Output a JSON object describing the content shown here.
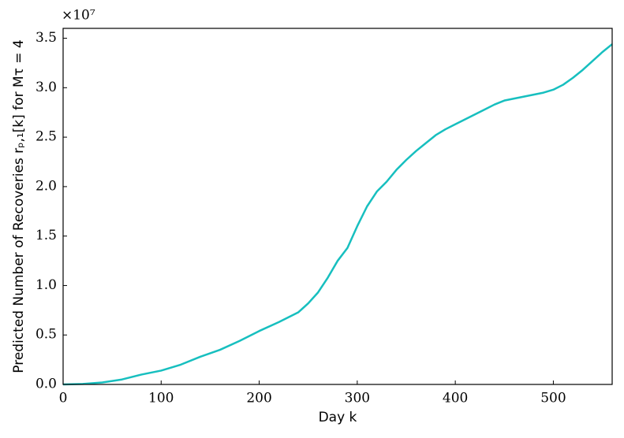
{
  "chart_data": {
    "type": "line",
    "xlabel": "Day k",
    "ylabel": "Predicted Number of Recoveries rₚ,₁[k] for Mτ = 4",
    "y_multiplier": "×10⁷",
    "x": [
      0,
      20,
      40,
      60,
      80,
      100,
      120,
      140,
      160,
      180,
      200,
      220,
      240,
      250,
      260,
      270,
      280,
      290,
      300,
      310,
      320,
      330,
      340,
      350,
      360,
      370,
      380,
      390,
      400,
      410,
      420,
      430,
      440,
      450,
      460,
      470,
      480,
      490,
      500,
      510,
      520,
      530,
      540,
      550,
      560
    ],
    "series": [
      {
        "color": "#17bfbf",
        "values": [
          0,
          0.005,
          0.02,
          0.05,
          0.1,
          0.14,
          0.2,
          0.28,
          0.35,
          0.44,
          0.54,
          0.63,
          0.73,
          0.82,
          0.93,
          1.08,
          1.25,
          1.38,
          1.6,
          1.8,
          1.95,
          2.05,
          2.17,
          2.27,
          2.36,
          2.44,
          2.52,
          2.58,
          2.63,
          2.68,
          2.73,
          2.78,
          2.83,
          2.87,
          2.89,
          2.91,
          2.93,
          2.95,
          2.98,
          3.03,
          3.1,
          3.18,
          3.27,
          3.36,
          3.44
        ]
      }
    ],
    "xlim": [
      0,
      560
    ],
    "ylim": [
      0,
      3.6
    ],
    "xticks": [
      0,
      100,
      200,
      300,
      400,
      500
    ],
    "yticks": [
      {
        "value": 0,
        "label": "0.0"
      },
      0.5,
      {
        "value": 1,
        "label": "1.0"
      },
      1.5,
      {
        "value": 2,
        "label": "2.0"
      },
      2.5,
      {
        "value": 3,
        "label": "3.0"
      },
      3.5
    ],
    "grid": false
  }
}
